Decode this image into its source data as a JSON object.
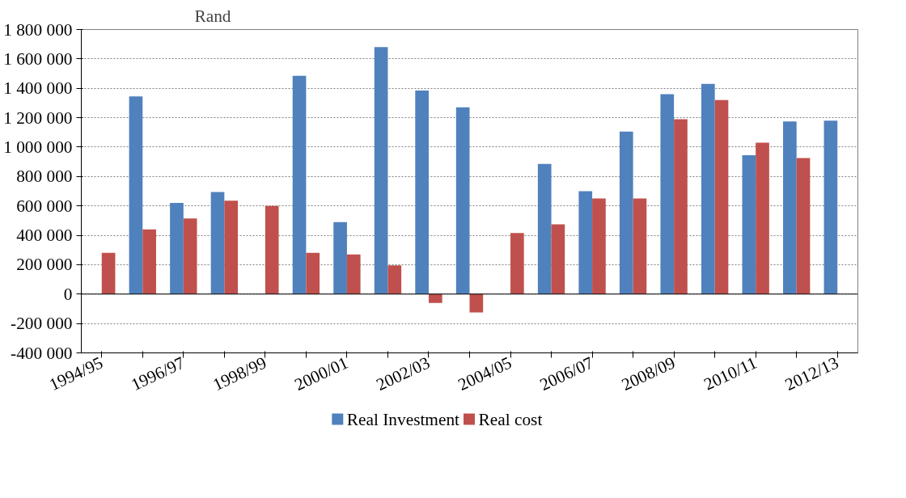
{
  "chart_data": {
    "type": "bar",
    "ylabel": "Rand",
    "categories": [
      "1994/95",
      null,
      "1996/97",
      null,
      "1998/99",
      null,
      "2000/01",
      null,
      "2002/03",
      null,
      "2004/05",
      null,
      "2006/07",
      null,
      "2008/09",
      null,
      "2010/11",
      null,
      "2012/13"
    ],
    "series": [
      {
        "name": "Real Investment",
        "color": "#4f81bd",
        "values": [
          null,
          1345000,
          620000,
          695000,
          null,
          1485000,
          490000,
          1680000,
          1385000,
          1270000,
          null,
          885000,
          700000,
          1105000,
          1360000,
          1430000,
          945000,
          1175000,
          1180000
        ]
      },
      {
        "name": "Real cost",
        "color": "#c0504d",
        "values": [
          280000,
          440000,
          515000,
          635000,
          600000,
          280000,
          270000,
          195000,
          -60000,
          -125000,
          415000,
          475000,
          650000,
          650000,
          1190000,
          1320000,
          1030000,
          925000,
          null
        ]
      }
    ],
    "ylim": [
      -400000,
      1800000
    ],
    "yticks": [
      {
        "value": -400000,
        "label": "-400 000"
      },
      {
        "value": -200000,
        "label": "-200 000"
      },
      0,
      {
        "value": 200000,
        "label": "200 000"
      },
      {
        "value": 400000,
        "label": "400 000"
      },
      {
        "value": 600000,
        "label": "600 000"
      },
      {
        "value": 800000,
        "label": "800 000"
      },
      {
        "value": 1000000,
        "label": "1 000 000"
      },
      {
        "value": 1200000,
        "label": "1 200 000"
      },
      {
        "value": 1400000,
        "label": "1 400 000"
      },
      {
        "value": 1600000,
        "label": "1 600 000"
      },
      {
        "value": 1800000,
        "label": "1 800 000"
      }
    ],
    "grid": "y",
    "legend": "bottom"
  }
}
